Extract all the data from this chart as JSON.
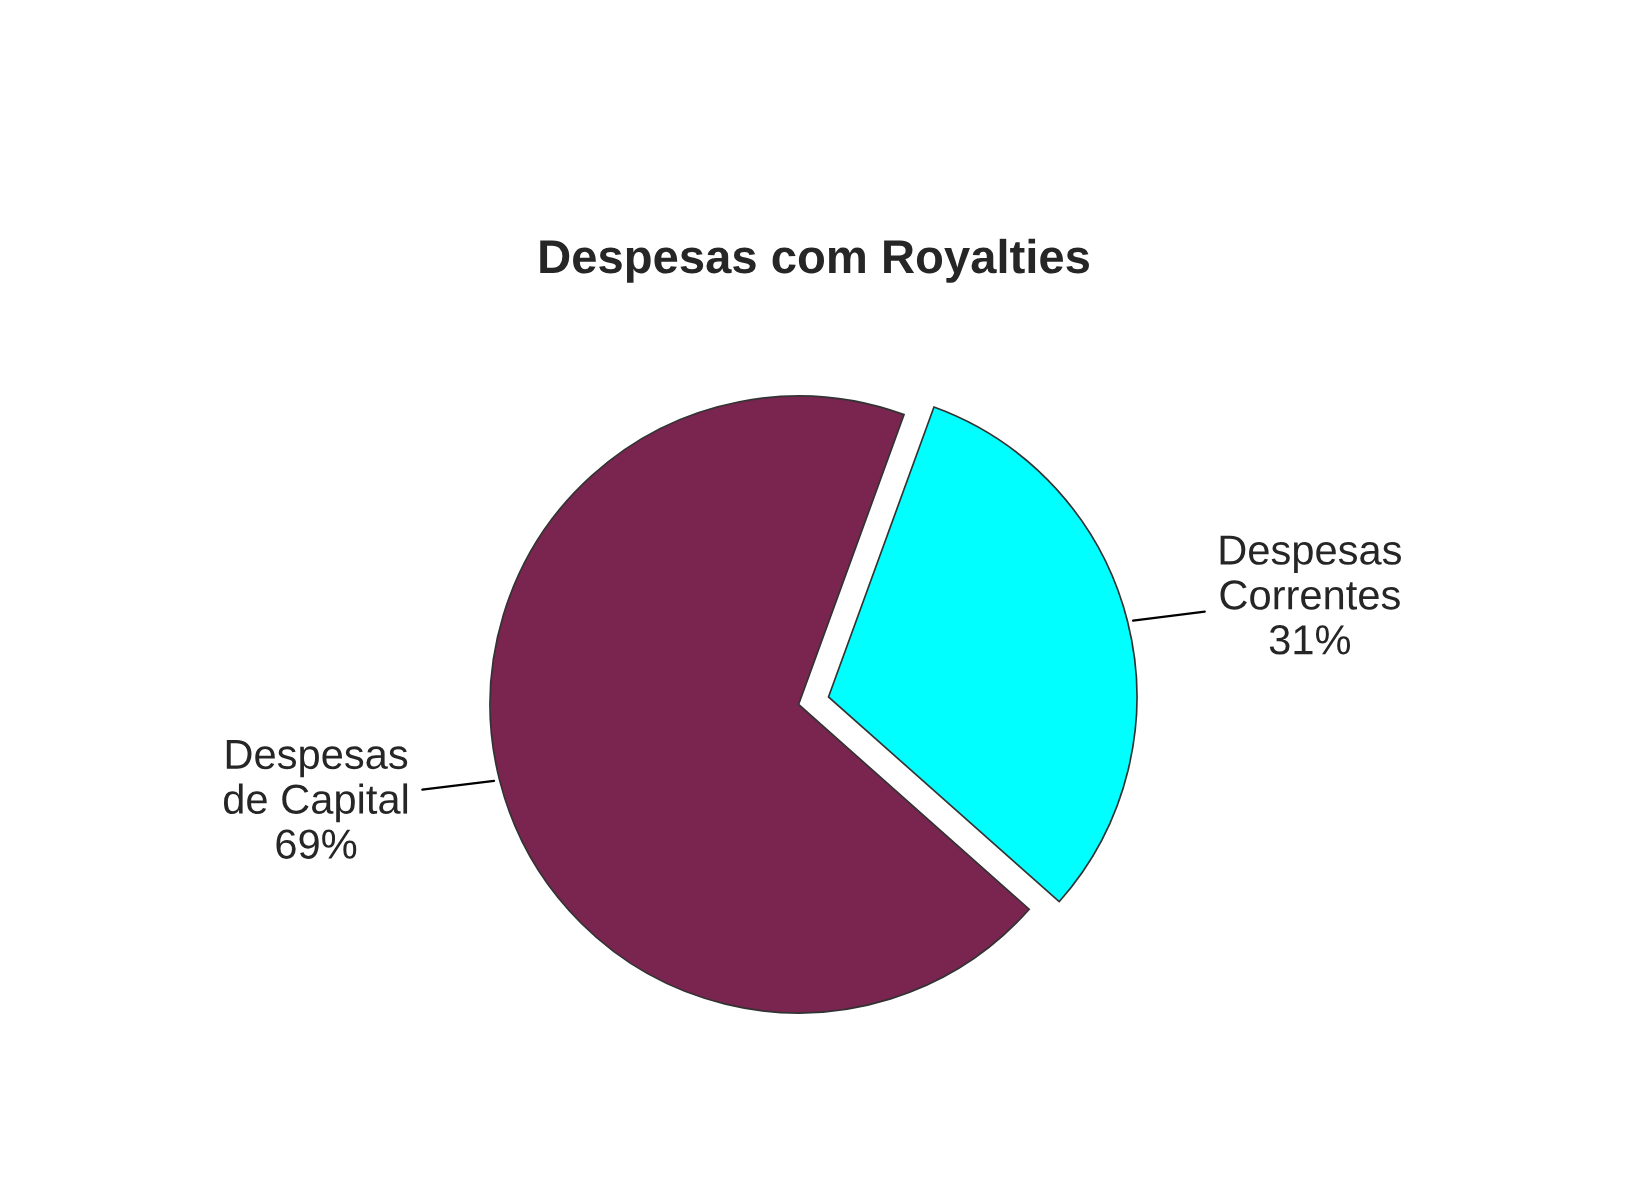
{
  "chart_data": {
    "type": "pie",
    "title": "Despesas com Royalties",
    "categories": [
      "Despesas\nde Capital",
      "Despesas\nCorrentes"
    ],
    "values": [
      69,
      31
    ],
    "value_labels": [
      "69%",
      "31%"
    ],
    "colors": [
      "#7a2450",
      "#00ffff"
    ],
    "legend": false
  }
}
